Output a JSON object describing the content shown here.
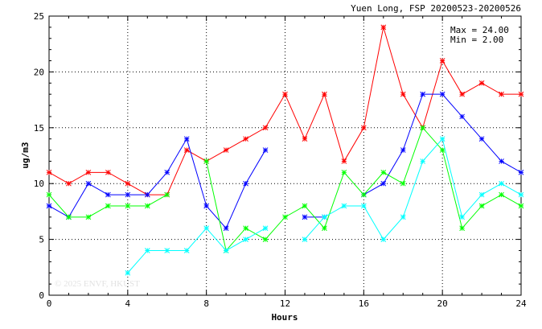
{
  "chart_data": {
    "type": "line",
    "title": "Yuen Long, FSP 20200523-20200526",
    "xlabel": "Hours",
    "ylabel": "ug/m3",
    "xlim": [
      0,
      24
    ],
    "ylim": [
      0,
      25
    ],
    "xticks": [
      0,
      4,
      8,
      12,
      16,
      20,
      24
    ],
    "yticks": [
      0,
      5,
      10,
      15,
      20,
      25
    ],
    "grid": true,
    "stats": {
      "max_label": "Max = 24.00",
      "min_label": "Min =  2.00"
    },
    "watermark": "© 2025  ENVF, HKUST",
    "x": [
      0,
      1,
      2,
      3,
      4,
      5,
      6,
      7,
      8,
      9,
      10,
      11,
      12,
      13,
      14,
      15,
      16,
      17,
      18,
      19,
      20,
      21,
      22,
      23,
      24
    ],
    "series": [
      {
        "color": "#ff0000",
        "values": [
          11,
          10,
          11,
          11,
          10,
          9,
          9,
          13,
          12,
          13,
          14,
          15,
          18,
          14,
          18,
          12,
          15,
          24,
          18,
          15,
          21,
          18,
          19,
          18,
          18
        ]
      },
      {
        "color": "#0000ff",
        "values": [
          8,
          7,
          10,
          9,
          9,
          9,
          11,
          14,
          8,
          6,
          10,
          13,
          null,
          7,
          7,
          null,
          9,
          10,
          13,
          18,
          18,
          16,
          14,
          12,
          11
        ]
      },
      {
        "color": "#00ff00",
        "values": [
          9,
          7,
          7,
          8,
          8,
          8,
          9,
          null,
          12,
          4,
          6,
          5,
          7,
          8,
          6,
          11,
          9,
          11,
          10,
          15,
          13,
          6,
          8,
          9,
          8
        ]
      },
      {
        "color": "#00ffff",
        "values": [
          null,
          null,
          null,
          null,
          2,
          4,
          4,
          4,
          6,
          4,
          5,
          6,
          null,
          5,
          7,
          8,
          8,
          5,
          7,
          12,
          14,
          7,
          9,
          10,
          9
        ]
      }
    ]
  }
}
